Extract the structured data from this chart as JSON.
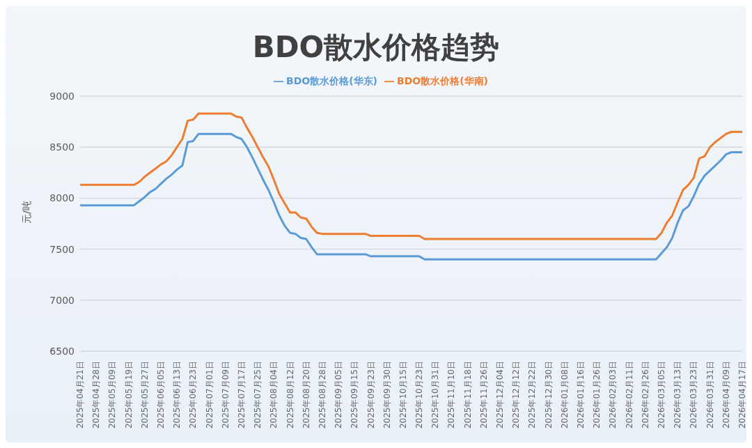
{
  "chart_data": {
    "type": "line",
    "title": "BDO散水价格趋势",
    "ylabel": "元/吨",
    "categories": [
      "2025年04月21日",
      null,
      null,
      "2025年04月28日",
      null,
      null,
      "2025年05月09日",
      null,
      null,
      "2025年05月19日",
      null,
      null,
      "2025年05月27日",
      null,
      null,
      "2025年06月05日",
      null,
      null,
      "2025年06月13日",
      null,
      null,
      "2025年06月23日",
      null,
      null,
      "2025年07月01日",
      null,
      null,
      "2025年07月09日",
      null,
      null,
      "2025年07月17日",
      null,
      null,
      "2025年07月25日",
      null,
      null,
      "2025年08月04日",
      null,
      null,
      "2025年08月12日",
      null,
      null,
      "2025年08月20日",
      null,
      null,
      "2025年08月28日",
      null,
      null,
      "2025年09月05日",
      null,
      null,
      "2025年09月15日",
      null,
      null,
      "2025年09月23日",
      null,
      null,
      "2025年09月30日",
      null,
      null,
      "2025年10月15日",
      null,
      null,
      "2025年10月23日",
      null,
      null,
      "2025年10月31日",
      null,
      null,
      "2025年11月10日",
      null,
      null,
      "2025年11月18日",
      null,
      null,
      "2025年11月26日",
      null,
      null,
      "2025年12月04日",
      null,
      null,
      "2025年12月12日",
      null,
      null,
      "2025年12月22日",
      null,
      null,
      "2025年12月30日",
      null,
      null,
      "2026年01月08日",
      null,
      null,
      "2026年01月16日",
      null,
      null,
      "2026年01月26日",
      null,
      null,
      "2026年02月03日",
      null,
      null,
      "2026年02月11日",
      null,
      null,
      "2026年02月26日",
      null,
      null,
      "2026年03月05日",
      null,
      null,
      "2026年03月13日",
      null,
      null,
      "2026年03月23日",
      null,
      null,
      "2026年03月31日",
      null,
      null,
      "2026年04月09日",
      null,
      null,
      "2026年04月17日"
    ],
    "series": [
      {
        "name": "BDO散水价格(华东)",
        "color": "#5b9bd5",
        "values": [
          7930,
          7930,
          7930,
          7930,
          7930,
          7930,
          7930,
          7930,
          7930,
          7930,
          7930,
          7970,
          8010,
          8060,
          8090,
          8140,
          8190,
          8230,
          8280,
          8320,
          8550,
          8560,
          8630,
          8630,
          8630,
          8630,
          8630,
          8630,
          8630,
          8600,
          8580,
          8500,
          8400,
          8290,
          8180,
          8080,
          7960,
          7830,
          7730,
          7660,
          7650,
          7610,
          7600,
          7520,
          7450,
          7450,
          7450,
          7450,
          7450,
          7450,
          7450,
          7450,
          7450,
          7450,
          7430,
          7430,
          7430,
          7430,
          7430,
          7430,
          7430,
          7430,
          7430,
          7430,
          7400,
          7400,
          7400,
          7400,
          7400,
          7400,
          7400,
          7400,
          7400,
          7400,
          7400,
          7400,
          7400,
          7400,
          7400,
          7400,
          7400,
          7400,
          7400,
          7400,
          7400,
          7400,
          7400,
          7400,
          7400,
          7400,
          7400,
          7400,
          7400,
          7400,
          7400,
          7400,
          7400,
          7400,
          7400,
          7400,
          7400,
          7400,
          7400,
          7400,
          7400,
          7400,
          7400,
          7400,
          7460,
          7520,
          7610,
          7760,
          7880,
          7920,
          8020,
          8140,
          8220,
          8270,
          8320,
          8370,
          8430,
          8450,
          8450,
          8450
        ]
      },
      {
        "name": "BDO散水价格(华南)",
        "color": "#ed7d31",
        "values": [
          8130,
          8130,
          8130,
          8130,
          8130,
          8130,
          8130,
          8130,
          8130,
          8130,
          8130,
          8160,
          8210,
          8250,
          8290,
          8330,
          8360,
          8420,
          8500,
          8580,
          8760,
          8770,
          8830,
          8830,
          8830,
          8830,
          8830,
          8830,
          8830,
          8800,
          8790,
          8690,
          8600,
          8500,
          8400,
          8310,
          8180,
          8040,
          7950,
          7860,
          7860,
          7810,
          7800,
          7720,
          7660,
          7650,
          7650,
          7650,
          7650,
          7650,
          7650,
          7650,
          7650,
          7650,
          7630,
          7630,
          7630,
          7630,
          7630,
          7630,
          7630,
          7630,
          7630,
          7630,
          7600,
          7600,
          7600,
          7600,
          7600,
          7600,
          7600,
          7600,
          7600,
          7600,
          7600,
          7600,
          7600,
          7600,
          7600,
          7600,
          7600,
          7600,
          7600,
          7600,
          7600,
          7600,
          7600,
          7600,
          7600,
          7600,
          7600,
          7600,
          7600,
          7600,
          7600,
          7600,
          7600,
          7600,
          7600,
          7600,
          7600,
          7600,
          7600,
          7600,
          7600,
          7600,
          7600,
          7600,
          7660,
          7760,
          7830,
          7960,
          8080,
          8130,
          8200,
          8390,
          8410,
          8500,
          8550,
          8590,
          8630,
          8650,
          8650,
          8650
        ]
      }
    ],
    "ylim": [
      6500,
      9000
    ],
    "yticks": [
      6500,
      7000,
      7500,
      8000,
      8500,
      9000
    ],
    "grid": "y",
    "legend": "top",
    "marker": "none"
  }
}
